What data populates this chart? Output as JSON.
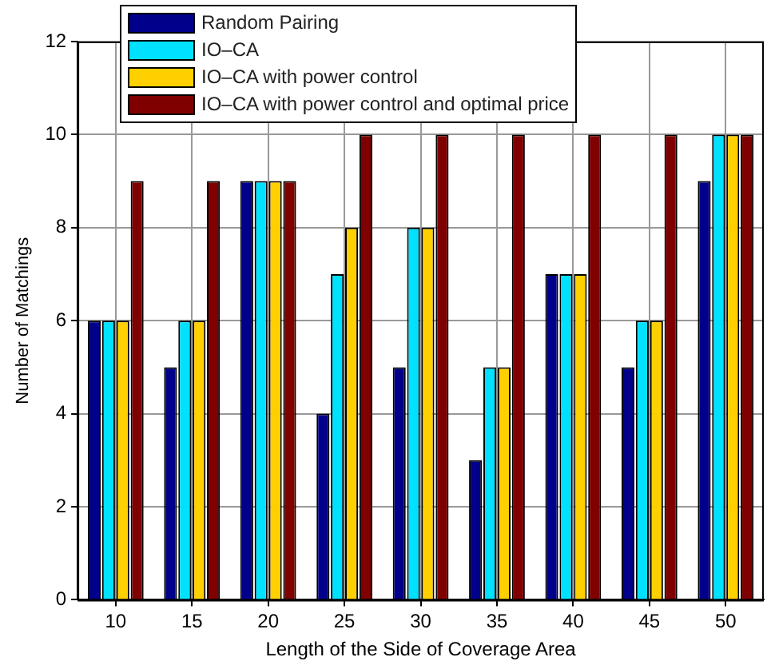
{
  "chart_data": {
    "type": "bar",
    "xlabel": "Length of the Side of Coverage Area",
    "ylabel": "Number of Matchings",
    "categories": [
      "10",
      "15",
      "20",
      "25",
      "30",
      "35",
      "40",
      "45",
      "50"
    ],
    "series": [
      {
        "name": "Random Pairing",
        "color": "#00008b",
        "values": [
          6,
          5,
          9,
          4,
          5,
          3,
          7,
          5,
          9
        ]
      },
      {
        "name": "IO–CA",
        "color": "#00e0ff",
        "values": [
          6,
          6,
          9,
          7,
          8,
          5,
          7,
          6,
          10
        ]
      },
      {
        "name": "IO–CA with power control",
        "color": "#ffd000",
        "values": [
          6,
          6,
          9,
          8,
          8,
          5,
          7,
          6,
          10
        ]
      },
      {
        "name": "IO–CA with power control and optimal price",
        "color": "#800000",
        "values": [
          9,
          9,
          9,
          10,
          10,
          10,
          10,
          10,
          10
        ]
      }
    ],
    "ylim": [
      0,
      12
    ],
    "yticks": [
      0,
      2,
      4,
      6,
      8,
      10,
      12
    ],
    "grid": true,
    "legend": "top left"
  }
}
